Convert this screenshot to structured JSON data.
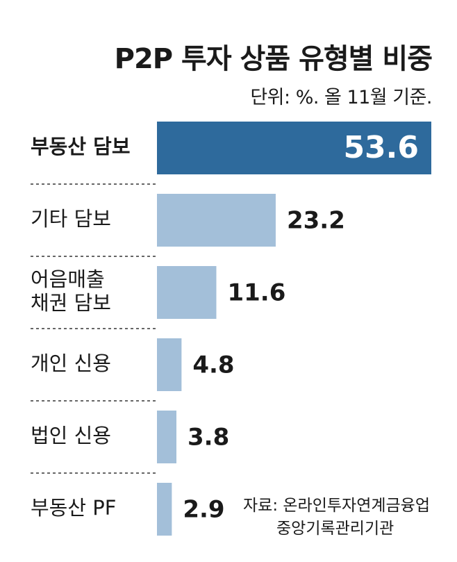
{
  "colors": {
    "highlight": "#2e6a9c",
    "bar": "#a3bfd9",
    "divider": "#333333"
  },
  "chart_data": {
    "type": "bar",
    "orientation": "horizontal",
    "title": "P2P 투자 상품 유형별 비중",
    "subtitle": "단위: %. 올 11월 기준.",
    "categories": [
      [
        "부동산 담보"
      ],
      [
        "기타 담보"
      ],
      [
        "어음매출",
        "채권 담보"
      ],
      [
        "개인 신용"
      ],
      [
        "법인 신용"
      ],
      [
        "부동산 PF"
      ]
    ],
    "values": [
      53.6,
      23.2,
      11.6,
      4.8,
      3.8,
      2.9
    ],
    "value_labels": [
      "53.6",
      "23.2",
      "11.6",
      "4.8",
      "3.8",
      "2.9"
    ],
    "highlight_index": 0,
    "xlim": [
      0,
      53.6
    ],
    "grid": false,
    "source_label": "자료:",
    "source_lines": [
      "온라인투자연계금융업",
      "중앙기록관리기관"
    ]
  }
}
